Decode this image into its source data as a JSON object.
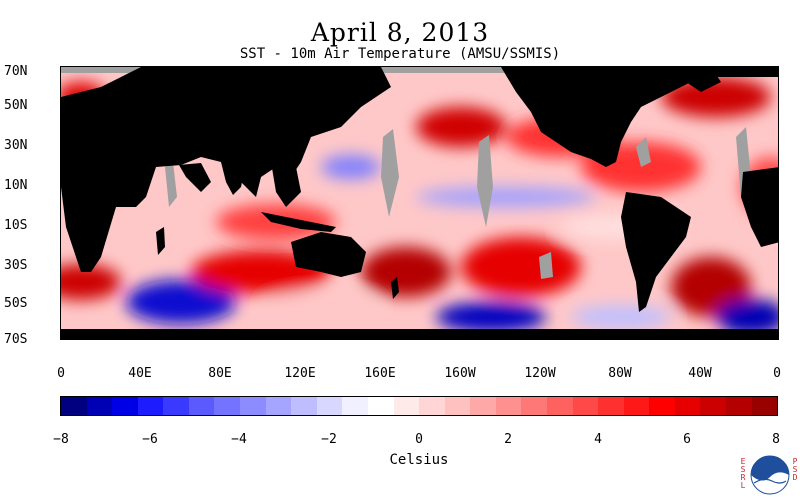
{
  "header": {
    "title": "April 8, 2013",
    "subtitle": "SST - 10m Air Temperature (AMSU/SSMIS)"
  },
  "axes": {
    "latitude_labels": [
      "70N",
      "50N",
      "30N",
      "10N",
      "10S",
      "30S",
      "50S",
      "70S"
    ],
    "longitude_labels": [
      "0",
      "40E",
      "80E",
      "120E",
      "160E",
      "160W",
      "120W",
      "80W",
      "40W",
      "0"
    ]
  },
  "colorbar": {
    "tick_labels": [
      "−8",
      "−6",
      "−4",
      "−2",
      "0",
      "2",
      "4",
      "6",
      "8"
    ],
    "axis_label": "Celsius",
    "colors": [
      "#000080",
      "#0000b4",
      "#0000e6",
      "#1c1cff",
      "#3a3aff",
      "#5a5aff",
      "#7373ff",
      "#8c8cff",
      "#a5a5ff",
      "#bebeff",
      "#d7d7ff",
      "#f0f0ff",
      "#ffffff",
      "#ffeaea",
      "#ffd5d5",
      "#ffc0c0",
      "#ffa8a8",
      "#ff9090",
      "#ff7878",
      "#ff6060",
      "#ff4848",
      "#ff3030",
      "#ff1818",
      "#ff0000",
      "#e60000",
      "#cc0000",
      "#b40000",
      "#990000"
    ]
  },
  "legend_colors": {
    "land": "#000000",
    "ice_or_missing": "#a0a0a0"
  },
  "credits": {
    "left_mark": "ESRL",
    "right_mark": "PSD",
    "logo": "noaa-logo"
  }
}
